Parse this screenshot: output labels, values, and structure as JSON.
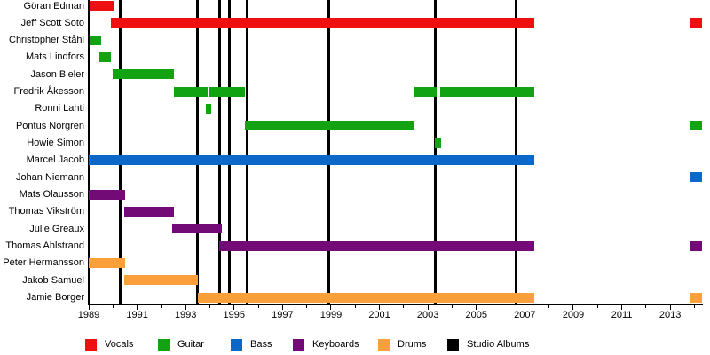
{
  "chart_data": {
    "type": "timeline",
    "description": "Band members tenure timeline (gantt-style) with studio album release markers",
    "x_axis": {
      "start": 1989,
      "end": 2014.35,
      "labeled_ticks": [
        1989,
        1991,
        1993,
        1995,
        1997,
        1999,
        2001,
        2003,
        2005,
        2007,
        2009,
        2011,
        2013
      ],
      "minor_ticks": [
        1990,
        1992,
        1994,
        1996,
        1998,
        2000,
        2002,
        2004,
        2006,
        2008,
        2010,
        2012,
        2014
      ],
      "grid": false
    },
    "roles": {
      "Vocals": "#EE1010",
      "Guitar": "#12A312",
      "Bass": "#0A69C8",
      "Keyboards": "#730B76",
      "Drums": "#F9A03A"
    },
    "album_marker_color": "#000000",
    "members": [
      {
        "name": "Göran Edman",
        "role": "Vocals",
        "periods": [
          [
            1989.05,
            1990.05
          ]
        ]
      },
      {
        "name": "Jeff Scott Soto",
        "role": "Vocals",
        "periods": [
          [
            1989.9,
            2007.4
          ],
          [
            2013.8,
            2014.3
          ]
        ]
      },
      {
        "name": "Christopher Ståhl",
        "role": "Guitar",
        "periods": [
          [
            1989.05,
            1989.5
          ]
        ]
      },
      {
        "name": "Mats Lindfors",
        "role": "Guitar",
        "periods": [
          [
            1989.4,
            1989.9
          ]
        ]
      },
      {
        "name": "Jason Bieler",
        "role": "Guitar",
        "periods": [
          [
            1990.0,
            1992.5
          ]
        ]
      },
      {
        "name": "Fredrik Åkesson",
        "role": "Guitar",
        "periods": [
          [
            1992.5,
            1993.9
          ],
          [
            1994.0,
            1995.45
          ],
          [
            2002.4,
            2003.35
          ],
          [
            2003.5,
            2007.4
          ]
        ]
      },
      {
        "name": "Ronni Lahti",
        "role": "Guitar",
        "periods": [
          [
            1993.85,
            1994.05
          ]
        ]
      },
      {
        "name": "Pontus Norgren",
        "role": "Guitar",
        "periods": [
          [
            1995.45,
            2002.45
          ],
          [
            2013.8,
            2014.3
          ]
        ]
      },
      {
        "name": "Howie Simon",
        "role": "Guitar",
        "periods": [
          [
            2003.3,
            2003.55
          ]
        ]
      },
      {
        "name": "Marcel Jacob",
        "role": "Bass",
        "periods": [
          [
            1989.0,
            2007.4
          ]
        ]
      },
      {
        "name": "Johan Niemann",
        "role": "Bass",
        "periods": [
          [
            2013.8,
            2014.3
          ]
        ]
      },
      {
        "name": "Mats Olausson",
        "role": "Keyboards",
        "periods": [
          [
            1989.0,
            1990.5
          ]
        ]
      },
      {
        "name": "Thomas Vikström",
        "role": "Keyboards",
        "periods": [
          [
            1990.45,
            1992.5
          ]
        ]
      },
      {
        "name": "Julie Greaux",
        "role": "Keyboards",
        "periods": [
          [
            1992.45,
            1994.5
          ]
        ]
      },
      {
        "name": "Thomas Ahlstrand",
        "role": "Keyboards",
        "periods": [
          [
            1994.4,
            2007.4
          ],
          [
            2013.8,
            2014.3
          ]
        ]
      },
      {
        "name": "Peter Hermansson",
        "role": "Drums",
        "periods": [
          [
            1989.0,
            1990.5
          ]
        ]
      },
      {
        "name": "Jakob Samuel",
        "role": "Drums",
        "periods": [
          [
            1990.45,
            1993.5
          ]
        ]
      },
      {
        "name": "Jamie Borger",
        "role": "Drums",
        "periods": [
          [
            1993.5,
            2007.4
          ],
          [
            2013.8,
            2014.3
          ]
        ]
      }
    ],
    "album_years": [
      1990.3,
      1993.5,
      1994.4,
      1994.8,
      1995.55,
      1998.9,
      2003.3,
      2006.65
    ],
    "legend": [
      {
        "label": "Vocals",
        "color": "#EE1010"
      },
      {
        "label": "Guitar",
        "color": "#12A312"
      },
      {
        "label": "Bass",
        "color": "#0A69C8"
      },
      {
        "label": "Keyboards",
        "color": "#730B76"
      },
      {
        "label": "Drums",
        "color": "#F9A03A"
      },
      {
        "label": "Studio Albums",
        "color": "#000000"
      }
    ],
    "legend_position": "bottom"
  }
}
